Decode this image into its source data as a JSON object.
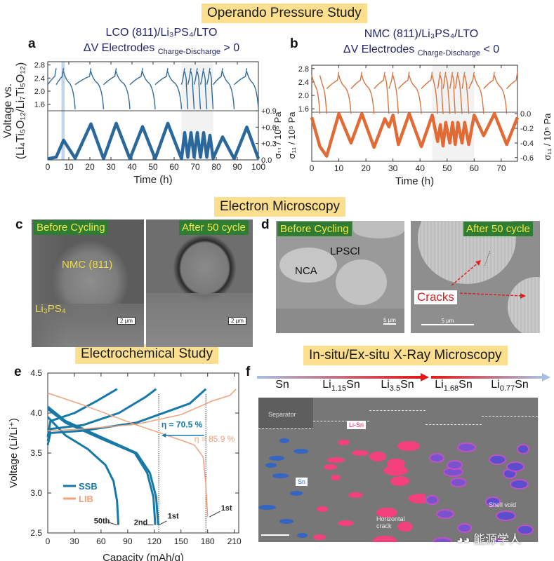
{
  "sections": {
    "operando": "Operando Pressure Study",
    "electron": "Electron Microscopy",
    "electrochem": "Electrochemical Study",
    "xray": "In-situ/Ex-situ X-Ray Microscopy"
  },
  "panels": {
    "a": {
      "letter": "a",
      "title_line1": "LCO (811)/Li₃PS₄/LTO",
      "title_line2_main": "ΔV Electrodes ",
      "title_line2_sub": "Charge-Discharge",
      "title_line2_end": " > 0"
    },
    "b": {
      "letter": "b",
      "title_line1": "NMC (811)/Li₃PS₄/LTO",
      "title_line2_main": "ΔV Electrodes ",
      "title_line2_sub": "Charge-Discharge",
      "title_line2_end": " < 0"
    },
    "c": {
      "letter": "c",
      "label_before": "Before Cycling",
      "label_after": "After 50 cycle",
      "label_particle": "NMC (811)",
      "label_electrolyte": "Li₃PS₄",
      "scale": "2 μm"
    },
    "d": {
      "letter": "d",
      "label_before": "Before Cycling",
      "label_after": "After 50 cycle",
      "label_particle": "NCA",
      "label_electrolyte": "LPSCl",
      "label_cracks": "Cracks",
      "scale": "5 μm"
    },
    "e": {
      "letter": "e"
    },
    "f": {
      "letter": "f",
      "phases": [
        {
          "base": "Sn",
          "sub": "",
          "end": ""
        },
        {
          "base": "Li",
          "sub": "1.15",
          "end": "Sn"
        },
        {
          "base": "Li",
          "sub": "3.5",
          "end": "Sn"
        },
        {
          "base": "Li",
          "sub": "1.68",
          "end": "Sn"
        },
        {
          "base": "Li",
          "sub": "0.77",
          "end": "Sn"
        }
      ],
      "label_separator": "Separator",
      "label_sn": "Sn",
      "label_lisn": "Li-Sn",
      "label_crack": "Horizontal crack",
      "label_void": "Shell void"
    }
  },
  "watermark": "能源学人",
  "colors": {
    "lco": "#1f5f96",
    "nmc": "#e0632a",
    "ssb": "#1679a8",
    "lib": "#f0a17a",
    "title_bg": "#fbdf8e",
    "green_label": "#2e7d32"
  },
  "chart_data": [
    {
      "type": "line",
      "panel": "a",
      "title": "LCO (811)/Li3PS4/LTO — ΔV Electrodes Charge-Discharge > 0",
      "xlabel": "Time (h)",
      "ylabel": "Voltage vs. (Li4Ti5O12/Li7Ti5O12)",
      "ylabel_right": "σ11 / 10^5 Pa",
      "xlim": [
        0,
        100
      ],
      "xticks": [
        0,
        10,
        20,
        30,
        40,
        50,
        60,
        70,
        80,
        90,
        100
      ],
      "voltage_ylim": [
        1.4,
        2.9
      ],
      "voltage_yticks": [
        "2.8",
        "2.4",
        "2.0",
        "1.6"
      ],
      "pressure_ylim": [
        0,
        0.9
      ],
      "pressure_yticks": [
        "+0.9",
        "+0.6",
        "+0.3",
        "0.0"
      ],
      "pressure_series": {
        "name": "stress",
        "x": [
          0,
          4,
          7.5,
          13,
          20.5,
          26.5,
          32.5,
          39,
          45,
          51,
          57,
          63.5,
          65,
          66.5,
          68,
          69.5,
          71,
          72.5,
          74,
          75.5,
          77,
          78.5,
          83,
          88.5,
          94.5,
          100
        ],
        "y": [
          0.02,
          0.05,
          0.36,
          0.03,
          0.66,
          0.02,
          0.67,
          0.02,
          0.61,
          0.02,
          0.67,
          0.02,
          0.5,
          0.05,
          0.5,
          0.05,
          0.5,
          0.05,
          0.5,
          0.05,
          0.45,
          0.03,
          0.42,
          0.02,
          0.6,
          0.02
        ]
      },
      "highlights": [
        {
          "x": [
            6.5,
            8
          ],
          "color": "blue"
        },
        {
          "x": [
            63.5,
            78.5
          ],
          "color": "grey"
        }
      ]
    },
    {
      "type": "line",
      "panel": "b",
      "title": "NMC (811)/Li3PS4/LTO — ΔV Electrodes Charge-Discharge < 0",
      "xlabel": "Time (h)",
      "ylabel_right": "σ11 / 10^5 Pa",
      "xlim": [
        0,
        76
      ],
      "xticks": [
        0,
        10,
        20,
        30,
        40,
        50,
        60,
        70
      ],
      "voltage_ylim": [
        1.5,
        2.9
      ],
      "voltage_yticks": [
        "2.8",
        "2.4",
        "2.0",
        "1.6"
      ],
      "pressure_ylim": [
        -0.65,
        0.02
      ],
      "pressure_yticks": [
        "0.0",
        "-0.2",
        "-0.4",
        "-0.6"
      ],
      "pressure_series": {
        "name": "stress",
        "x": [
          0,
          3,
          5.5,
          10,
          14.5,
          18.5,
          23,
          27,
          28.5,
          30,
          32,
          36,
          40.5,
          44.5,
          46.5,
          47.5,
          48.5,
          49.5,
          51,
          52,
          53,
          54,
          55.5,
          56.5,
          58,
          60,
          63.5,
          67.5,
          72,
          76
        ],
        "y": [
          -0.05,
          -0.45,
          -0.58,
          0.0,
          -0.4,
          0.0,
          -0.46,
          -0.07,
          -0.18,
          -0.02,
          -0.42,
          0.0,
          -0.45,
          -0.02,
          -0.38,
          -0.15,
          -0.44,
          -0.12,
          -0.4,
          -0.12,
          -0.42,
          -0.12,
          -0.4,
          -0.12,
          -0.42,
          -0.02,
          -0.3,
          0.0,
          -0.42,
          -0.05
        ]
      },
      "highlights": [
        {
          "x": [
            44.5,
            60
          ],
          "color": "grey"
        }
      ]
    },
    {
      "type": "line",
      "panel": "e",
      "xlabel": "Capacity (mAh/g)",
      "ylabel": "Voltage (Li/Li⁺)",
      "xlim": [
        0,
        215
      ],
      "ylim": [
        2.5,
        4.5
      ],
      "xticks": [
        0,
        30,
        60,
        90,
        120,
        150,
        180,
        210
      ],
      "yticks": [
        2.5,
        3.0,
        3.5,
        4.0,
        4.5
      ],
      "legend": [
        {
          "name": "SSB",
          "color": "#1679a8"
        },
        {
          "name": "LIB",
          "color": "#f0a17a"
        }
      ],
      "legend_position": "lower-left",
      "series": [
        {
          "name": "SSB 1st charge",
          "x": [
            0,
            3,
            40,
            100,
            160,
            178
          ],
          "y": [
            3.6,
            3.75,
            3.78,
            3.88,
            4.12,
            4.3
          ]
        },
        {
          "name": "SSB 2nd charge",
          "x": [
            0,
            3,
            40,
            80,
            110,
            122
          ],
          "y": [
            3.65,
            3.8,
            3.85,
            4.0,
            4.2,
            4.3
          ]
        },
        {
          "name": "SSB 50th charge",
          "x": [
            0,
            3,
            30,
            55,
            78
          ],
          "y": [
            3.7,
            3.9,
            4.0,
            4.15,
            4.3
          ]
        },
        {
          "name": "SSB 1st discharge",
          "x": [
            0,
            20,
            60,
            100,
            115,
            122,
            124.5
          ],
          "y": [
            4.08,
            3.9,
            3.7,
            3.5,
            3.25,
            2.95,
            2.6
          ]
        },
        {
          "name": "SSB 2nd discharge",
          "x": [
            0,
            20,
            60,
            98,
            112,
            119,
            121
          ],
          "y": [
            4.05,
            3.88,
            3.68,
            3.5,
            3.25,
            2.95,
            2.6
          ]
        },
        {
          "name": "SSB 50th discharge",
          "x": [
            0,
            20,
            45,
            65,
            74,
            78,
            79.5
          ],
          "y": [
            3.95,
            3.72,
            3.55,
            3.35,
            3.15,
            2.9,
            2.6
          ]
        },
        {
          "name": "LIB 1st charge",
          "x": [
            0,
            5,
            40,
            100,
            150,
            185,
            205,
            212
          ],
          "y": [
            3.78,
            3.78,
            3.8,
            3.86,
            3.98,
            4.15,
            4.22,
            4.3
          ]
        },
        {
          "name": "LIB 1st discharge",
          "x": [
            0,
            40,
            100,
            140,
            165,
            175,
            178,
            180
          ],
          "y": [
            4.25,
            4.1,
            3.85,
            3.7,
            3.6,
            3.45,
            3.1,
            2.7
          ]
        }
      ],
      "annotations": [
        {
          "text": "η = 70.5 %",
          "color": "#1679a8"
        },
        {
          "text": "η = 85.9 %",
          "color": "#f0a17a"
        },
        {
          "text": "50th"
        },
        {
          "text": "2nd"
        },
        {
          "text": "1st"
        },
        {
          "text": "1st"
        }
      ],
      "reference_lines_x": [
        125,
        178
      ]
    }
  ]
}
